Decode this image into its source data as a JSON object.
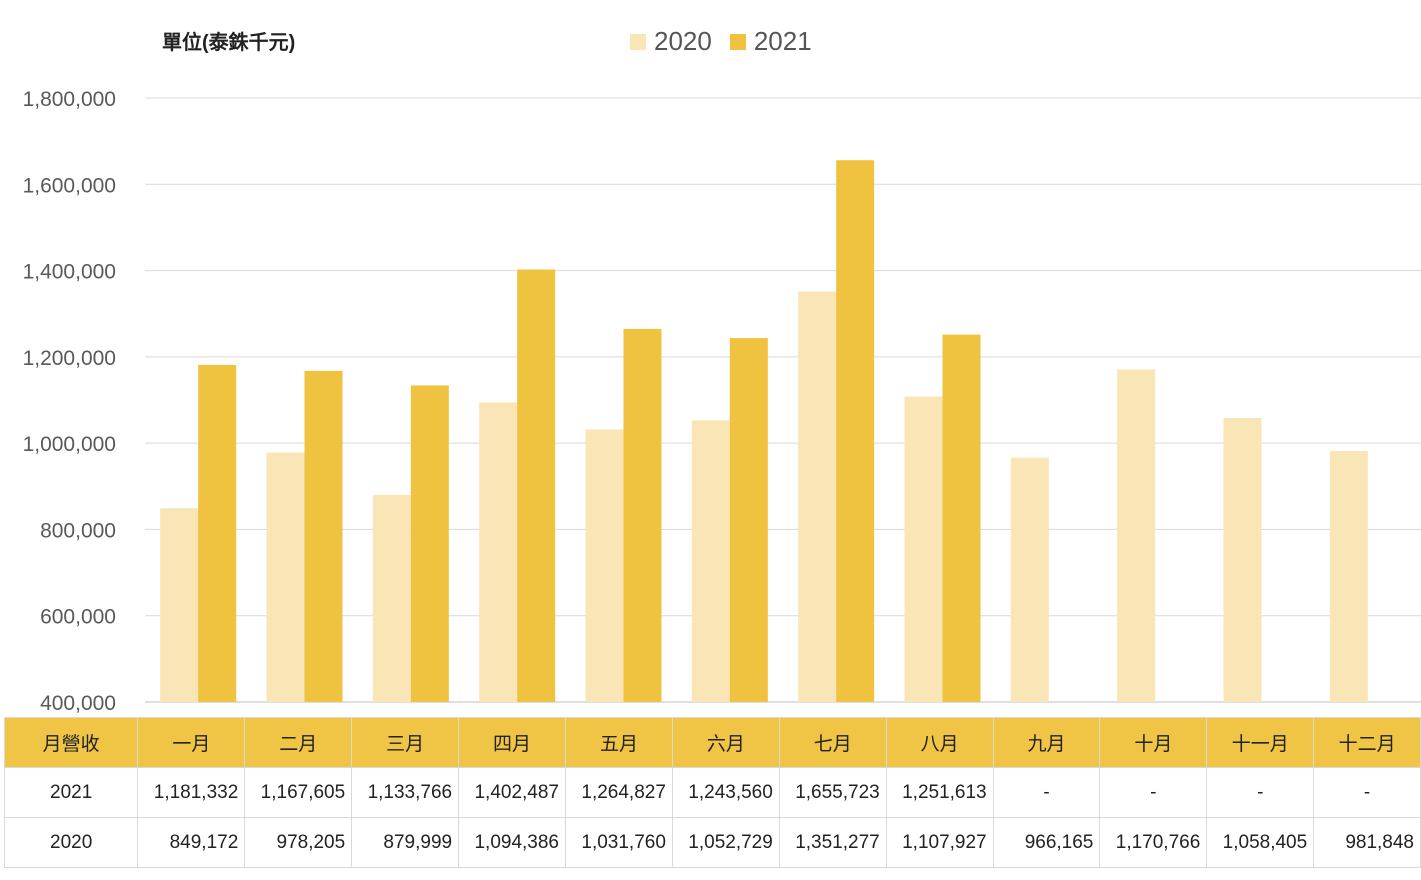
{
  "unit_label": "單位(泰銖千元)",
  "legend": [
    {
      "label": "2020",
      "color": "#f9e5b5"
    },
    {
      "label": "2021",
      "color": "#efc23f"
    }
  ],
  "chart_data": {
    "type": "bar",
    "title": "",
    "ylabel": "單位(泰銖千元)",
    "ylim": [
      400000,
      1800000
    ],
    "yticks": [
      "400,000",
      "600,000",
      "800,000",
      "1,000,000",
      "1,200,000",
      "1,400,000",
      "1,600,000",
      "1,800,000"
    ],
    "categories": [
      "一月",
      "二月",
      "三月",
      "四月",
      "五月",
      "六月",
      "七月",
      "八月",
      "九月",
      "十月",
      "十一月",
      "十二月"
    ],
    "series": [
      {
        "name": "2020",
        "color": "#f9e5b5",
        "values": [
          849172,
          978205,
          879999,
          1094386,
          1031760,
          1052729,
          1351277,
          1107927,
          966165,
          1170766,
          1058405,
          981848
        ]
      },
      {
        "name": "2021",
        "color": "#efc23f",
        "values": [
          1181332,
          1167605,
          1133766,
          1402487,
          1264827,
          1243560,
          1655723,
          1251613,
          null,
          null,
          null,
          null
        ]
      }
    ],
    "grid": true,
    "legend_position": "top-center"
  },
  "table": {
    "header_label": "月營收",
    "months": [
      "一月",
      "二月",
      "三月",
      "四月",
      "五月",
      "六月",
      "七月",
      "八月",
      "九月",
      "十月",
      "十一月",
      "十二月"
    ],
    "rows": [
      {
        "label": "2021",
        "cells": [
          "1,181,332",
          "1,167,605",
          "1,133,766",
          "1,402,487",
          "1,264,827",
          "1,243,560",
          "1,655,723",
          "1,251,613",
          "-",
          "-",
          "-",
          "-"
        ]
      },
      {
        "label": "2020",
        "cells": [
          "849,172",
          "978,205",
          "879,999",
          "1,094,386",
          "1,031,760",
          "1,052,729",
          "1,351,277",
          "1,107,927",
          "966,165",
          "1,170,766",
          "1,058,405",
          "981,848"
        ]
      }
    ]
  }
}
